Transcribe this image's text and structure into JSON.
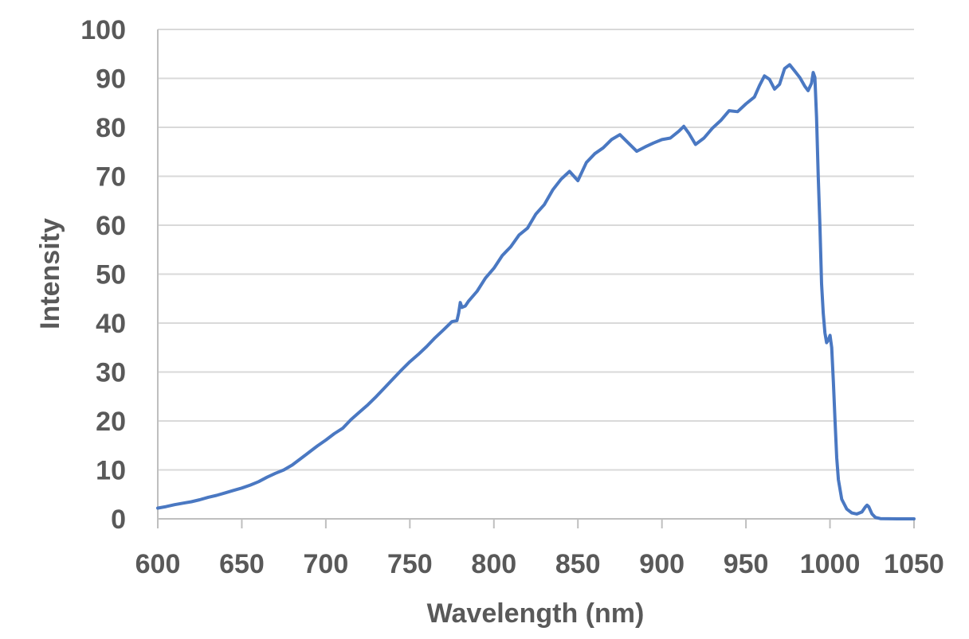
{
  "chart_data": {
    "type": "line",
    "title": "",
    "xlabel": "Wavelength (nm)",
    "ylabel": "Intensity",
    "xlim": [
      600,
      1050
    ],
    "ylim": [
      0,
      100
    ],
    "x_ticks": [
      600,
      650,
      700,
      750,
      800,
      850,
      900,
      950,
      1000,
      1050
    ],
    "y_ticks": [
      0,
      10,
      20,
      30,
      40,
      50,
      60,
      70,
      80,
      90,
      100
    ],
    "grid": "horizontal",
    "legend": "none",
    "series": [
      {
        "color": "#4a78c2",
        "points": [
          [
            600,
            2.2
          ],
          [
            605,
            2.5
          ],
          [
            610,
            2.9
          ],
          [
            615,
            3.2
          ],
          [
            620,
            3.5
          ],
          [
            625,
            3.9
          ],
          [
            630,
            4.4
          ],
          [
            635,
            4.8
          ],
          [
            640,
            5.3
          ],
          [
            645,
            5.8
          ],
          [
            650,
            6.3
          ],
          [
            655,
            6.9
          ],
          [
            660,
            7.6
          ],
          [
            665,
            8.5
          ],
          [
            670,
            9.3
          ],
          [
            675,
            10.0
          ],
          [
            680,
            11.0
          ],
          [
            685,
            12.3
          ],
          [
            690,
            13.6
          ],
          [
            695,
            14.9
          ],
          [
            700,
            16.1
          ],
          [
            705,
            17.4
          ],
          [
            710,
            18.5
          ],
          [
            715,
            20.3
          ],
          [
            720,
            21.8
          ],
          [
            725,
            23.3
          ],
          [
            730,
            25.0
          ],
          [
            735,
            26.8
          ],
          [
            740,
            28.6
          ],
          [
            745,
            30.4
          ],
          [
            750,
            32.1
          ],
          [
            755,
            33.6
          ],
          [
            760,
            35.2
          ],
          [
            765,
            37.0
          ],
          [
            770,
            38.6
          ],
          [
            775,
            40.3
          ],
          [
            778,
            40.5
          ],
          [
            779,
            42.0
          ],
          [
            780,
            44.2
          ],
          [
            781,
            43.2
          ],
          [
            783,
            43.5
          ],
          [
            785,
            44.5
          ],
          [
            790,
            46.5
          ],
          [
            795,
            49.2
          ],
          [
            800,
            51.2
          ],
          [
            805,
            53.8
          ],
          [
            810,
            55.6
          ],
          [
            815,
            58.0
          ],
          [
            820,
            59.4
          ],
          [
            825,
            62.3
          ],
          [
            830,
            64.2
          ],
          [
            835,
            67.2
          ],
          [
            840,
            69.4
          ],
          [
            845,
            71.0
          ],
          [
            850,
            69.1
          ],
          [
            855,
            72.8
          ],
          [
            860,
            74.6
          ],
          [
            865,
            75.8
          ],
          [
            870,
            77.5
          ],
          [
            875,
            78.5
          ],
          [
            880,
            76.8
          ],
          [
            885,
            75.1
          ],
          [
            890,
            76.0
          ],
          [
            895,
            76.8
          ],
          [
            900,
            77.5
          ],
          [
            905,
            77.8
          ],
          [
            910,
            79.2
          ],
          [
            913,
            80.2
          ],
          [
            916,
            78.8
          ],
          [
            920,
            76.5
          ],
          [
            925,
            77.8
          ],
          [
            930,
            79.8
          ],
          [
            935,
            81.4
          ],
          [
            940,
            83.4
          ],
          [
            945,
            83.2
          ],
          [
            950,
            84.8
          ],
          [
            955,
            86.2
          ],
          [
            958,
            88.5
          ],
          [
            961,
            90.5
          ],
          [
            964,
            89.8
          ],
          [
            967,
            87.8
          ],
          [
            970,
            88.8
          ],
          [
            973,
            92.0
          ],
          [
            976,
            92.8
          ],
          [
            979,
            91.5
          ],
          [
            982,
            90.2
          ],
          [
            985,
            88.4
          ],
          [
            987,
            87.5
          ],
          [
            989,
            89.0
          ],
          [
            990,
            91.2
          ],
          [
            991,
            90.2
          ],
          [
            992,
            82.0
          ],
          [
            993,
            70.0
          ],
          [
            994,
            60.0
          ],
          [
            995,
            48.0
          ],
          [
            996,
            42.0
          ],
          [
            997,
            38.0
          ],
          [
            998,
            36.0
          ],
          [
            999,
            36.5
          ],
          [
            1000,
            37.5
          ],
          [
            1001,
            35.0
          ],
          [
            1002,
            28.0
          ],
          [
            1003,
            20.0
          ],
          [
            1004,
            12.5
          ],
          [
            1005,
            8.0
          ],
          [
            1007,
            4.0
          ],
          [
            1010,
            2.0
          ],
          [
            1013,
            1.2
          ],
          [
            1016,
            1.0
          ],
          [
            1019,
            1.4
          ],
          [
            1021,
            2.4
          ],
          [
            1022,
            2.8
          ],
          [
            1023,
            2.5
          ],
          [
            1025,
            1.0
          ],
          [
            1027,
            0.3
          ],
          [
            1030,
            0.05
          ],
          [
            1040,
            0.0
          ],
          [
            1050,
            0.0
          ]
        ]
      }
    ]
  }
}
